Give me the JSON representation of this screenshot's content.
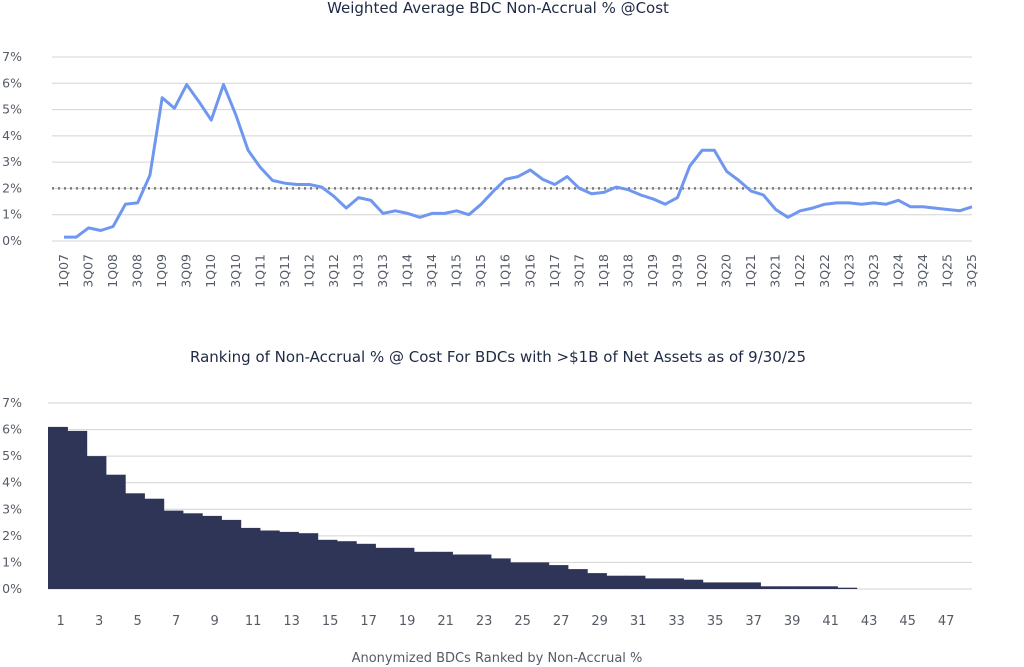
{
  "chart_data": [
    {
      "type": "line",
      "title": "Weighted Average BDC Non-Accrual % @Cost",
      "y_tick_labels": [
        "0%",
        "1%",
        "2%",
        "3%",
        "4%",
        "5%",
        "6%",
        "7%"
      ],
      "ylim": [
        0,
        7
      ],
      "grid": true,
      "reference_line": {
        "value": 2.0,
        "style": "dotted"
      },
      "x_tick_labels": [
        "1Q07",
        "3Q07",
        "1Q08",
        "3Q08",
        "1Q09",
        "3Q09",
        "1Q10",
        "3Q10",
        "1Q11",
        "3Q11",
        "1Q12",
        "3Q12",
        "1Q13",
        "3Q13",
        "1Q14",
        "3Q14",
        "1Q15",
        "3Q15",
        "1Q16",
        "3Q16",
        "1Q17",
        "3Q17",
        "1Q18",
        "3Q18",
        "1Q19",
        "3Q19",
        "1Q20",
        "3Q20",
        "1Q21",
        "3Q21",
        "1Q22",
        "3Q22",
        "1Q23",
        "3Q23",
        "1Q24",
        "3Q24",
        "1Q25",
        "3Q25"
      ],
      "x": [
        "1Q07",
        "2Q07",
        "3Q07",
        "4Q07",
        "1Q08",
        "2Q08",
        "3Q08",
        "4Q08",
        "1Q09",
        "2Q09",
        "3Q09",
        "4Q09",
        "1Q10",
        "2Q10",
        "3Q10",
        "4Q10",
        "1Q11",
        "2Q11",
        "3Q11",
        "4Q11",
        "1Q12",
        "2Q12",
        "3Q12",
        "4Q12",
        "1Q13",
        "2Q13",
        "3Q13",
        "4Q13",
        "1Q14",
        "2Q14",
        "3Q14",
        "4Q14",
        "1Q15",
        "2Q15",
        "3Q15",
        "4Q15",
        "1Q16",
        "2Q16",
        "3Q16",
        "4Q16",
        "1Q17",
        "2Q17",
        "3Q17",
        "4Q17",
        "1Q18",
        "2Q18",
        "3Q18",
        "4Q18",
        "1Q19",
        "2Q19",
        "3Q19",
        "4Q19",
        "1Q20",
        "2Q20",
        "3Q20",
        "4Q20",
        "1Q21",
        "2Q21",
        "3Q21",
        "4Q21",
        "1Q22",
        "2Q22",
        "3Q22",
        "4Q22",
        "1Q23",
        "2Q23",
        "3Q23",
        "4Q23",
        "1Q24",
        "2Q24",
        "3Q24",
        "4Q24",
        "1Q25",
        "2Q25",
        "3Q25"
      ],
      "values": [
        0.15,
        0.15,
        0.5,
        0.4,
        0.55,
        1.4,
        1.45,
        2.5,
        5.45,
        5.05,
        5.95,
        5.3,
        4.6,
        5.95,
        4.8,
        3.45,
        2.8,
        2.3,
        2.2,
        2.15,
        2.15,
        2.05,
        1.7,
        1.25,
        1.65,
        1.55,
        1.05,
        1.15,
        1.05,
        0.9,
        1.05,
        1.05,
        1.15,
        1.0,
        1.4,
        1.9,
        2.35,
        2.45,
        2.7,
        2.35,
        2.15,
        2.45,
        2.0,
        1.8,
        1.85,
        2.05,
        1.95,
        1.75,
        1.6,
        1.4,
        1.65,
        2.85,
        3.45,
        3.45,
        2.65,
        2.3,
        1.9,
        1.75,
        1.2,
        0.9,
        1.15,
        1.25,
        1.4,
        1.45,
        1.45,
        1.4,
        1.45,
        1.4,
        1.55,
        1.3,
        1.3,
        1.25,
        1.2,
        1.15,
        1.3
      ],
      "colors": {
        "line": "#6f97f0",
        "reference": "#7a7a7a"
      }
    },
    {
      "type": "bar",
      "title": "Ranking of Non-Accrual % @ Cost For BDCs with >$1B of Net Assets as of 9/30/25",
      "xlabel": "Anonymized BDCs Ranked by Non-Accrual %",
      "y_tick_labels": [
        "0%",
        "1%",
        "2%",
        "3%",
        "4%",
        "5%",
        "6%",
        "7%"
      ],
      "ylim": [
        0,
        7
      ],
      "grid": true,
      "x_tick_labels": [
        "1",
        "3",
        "5",
        "7",
        "9",
        "11",
        "13",
        "15",
        "17",
        "19",
        "21",
        "23",
        "25",
        "27",
        "29",
        "31",
        "33",
        "35",
        "37",
        "39",
        "41",
        "43",
        "45",
        "47"
      ],
      "categories": [
        1,
        2,
        3,
        4,
        5,
        6,
        7,
        8,
        9,
        10,
        11,
        12,
        13,
        14,
        15,
        16,
        17,
        18,
        19,
        20,
        21,
        22,
        23,
        24,
        25,
        26,
        27,
        28,
        29,
        30,
        31,
        32,
        33,
        34,
        35,
        36,
        37,
        38,
        39,
        40,
        41,
        42,
        43,
        44,
        45,
        46,
        47,
        48
      ],
      "values": [
        6.1,
        5.95,
        5.0,
        4.3,
        3.6,
        3.4,
        2.95,
        2.85,
        2.75,
        2.6,
        2.3,
        2.2,
        2.15,
        2.1,
        1.85,
        1.8,
        1.7,
        1.55,
        1.55,
        1.4,
        1.4,
        1.3,
        1.3,
        1.15,
        1.0,
        1.0,
        0.9,
        0.75,
        0.6,
        0.5,
        0.5,
        0.4,
        0.4,
        0.35,
        0.25,
        0.25,
        0.25,
        0.1,
        0.1,
        0.1,
        0.1,
        0.05,
        0,
        0,
        0,
        0,
        0,
        0
      ],
      "colors": {
        "bar": "#2e3557"
      }
    }
  ]
}
